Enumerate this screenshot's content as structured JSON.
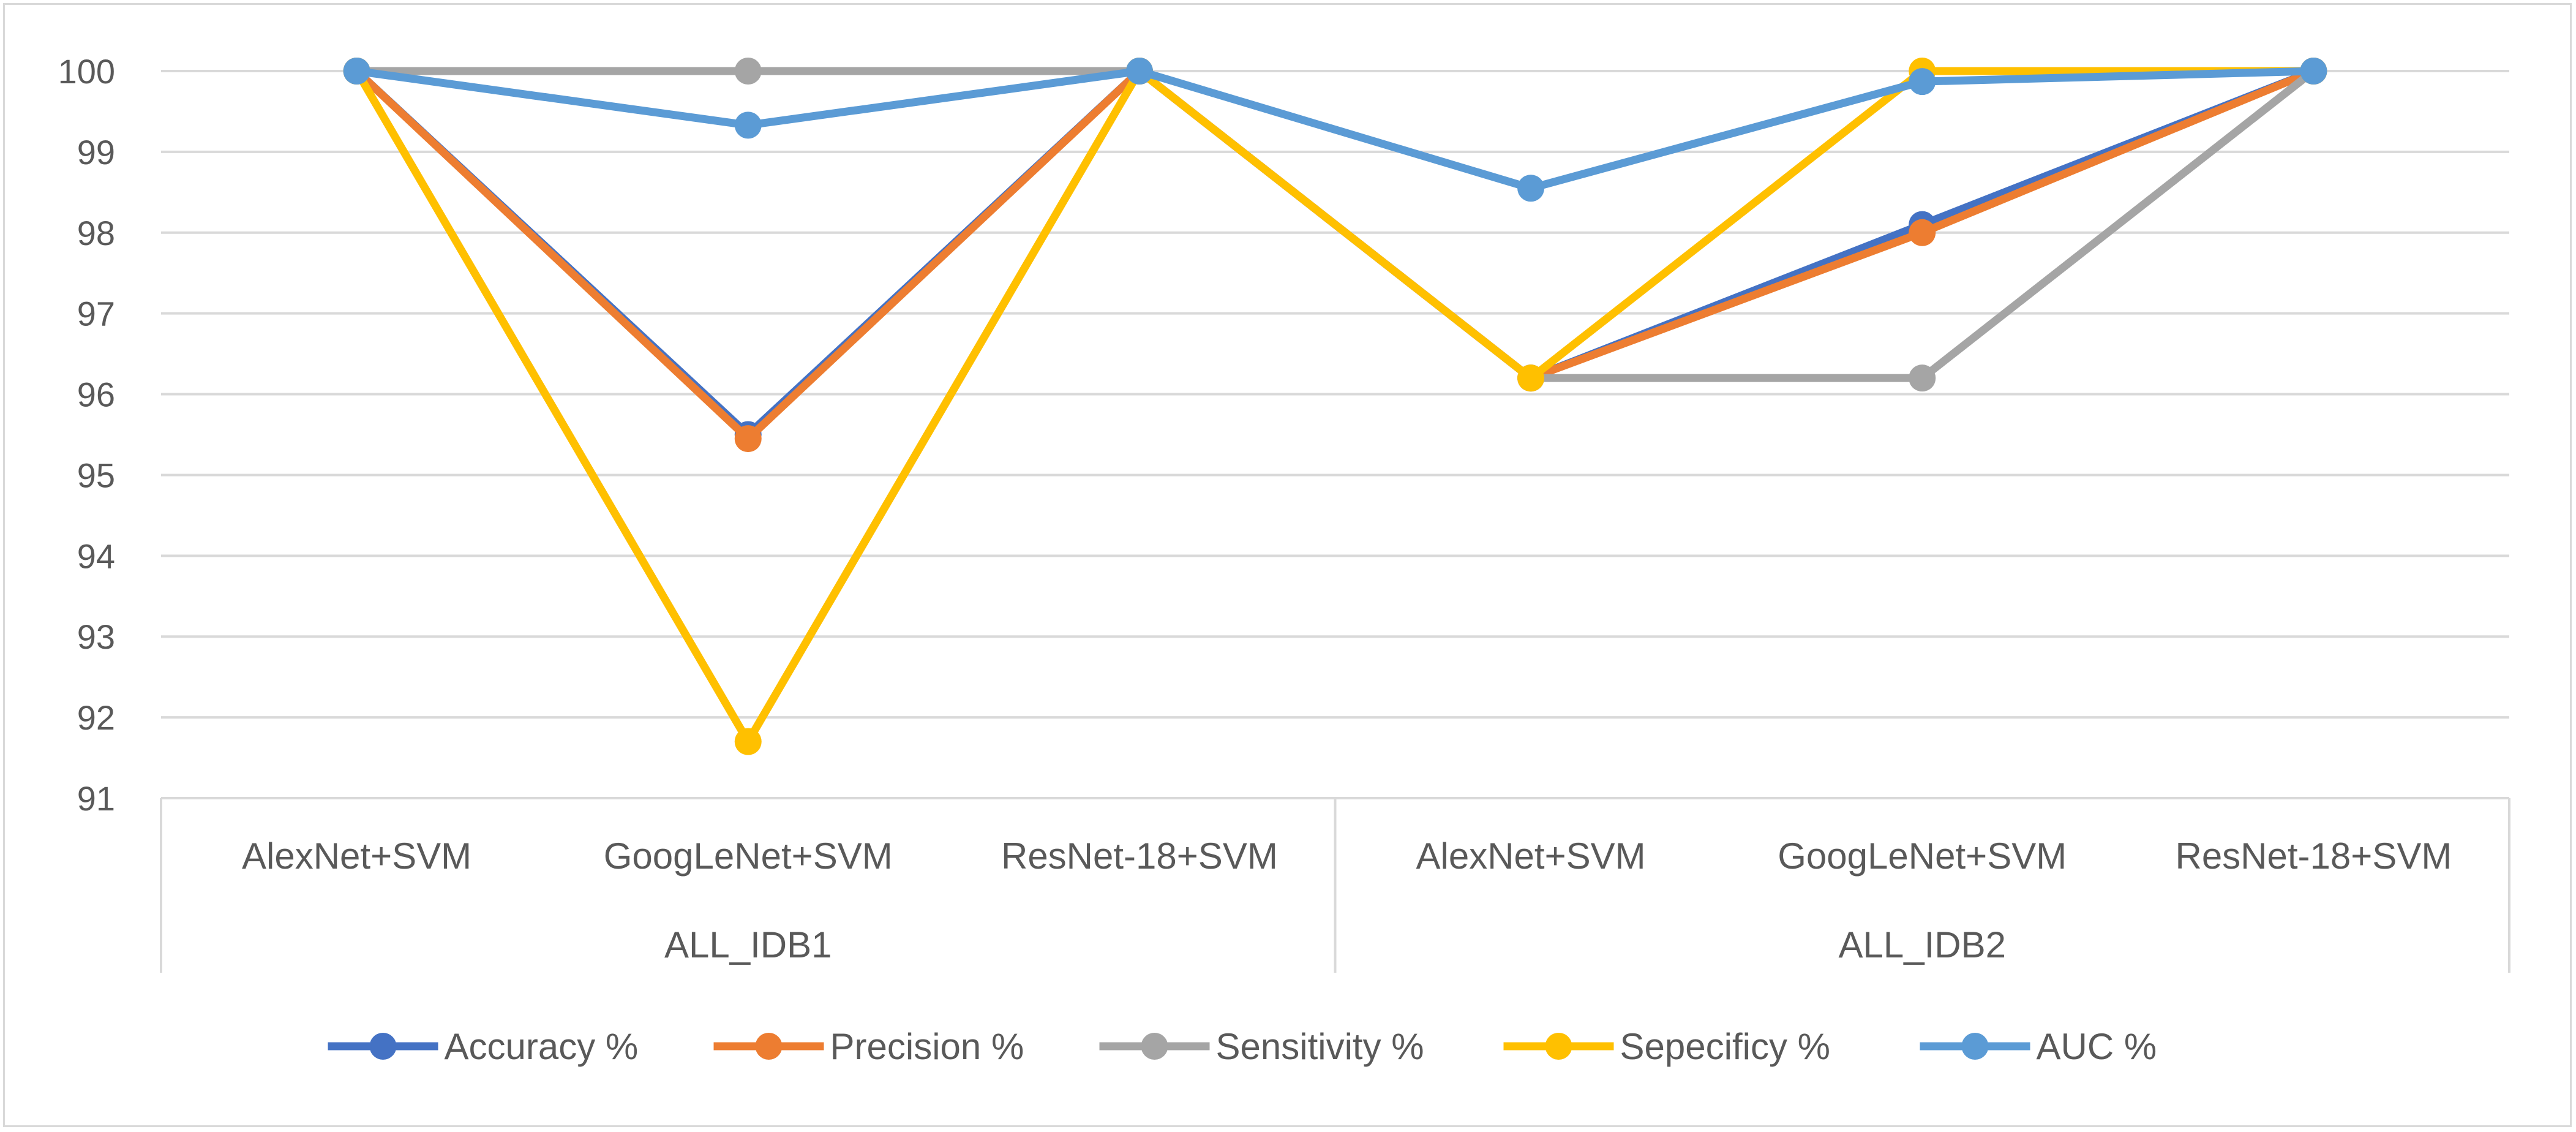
{
  "chart_data": {
    "type": "line",
    "title": "",
    "xlabel": "",
    "ylabel": "",
    "ylim": [
      91,
      100
    ],
    "yticks": [
      "91",
      "92",
      "93",
      "94",
      "95",
      "96",
      "97",
      "98",
      "99",
      "100"
    ],
    "grid": true,
    "legend_position": "bottom",
    "groups": [
      {
        "label": "ALL_IDB1",
        "categories": [
          "AlexNet+SVM",
          "GoogLeNet+SVM",
          "ResNet-18+SVM"
        ]
      },
      {
        "label": "ALL_IDB2",
        "categories": [
          "AlexNet+SVM",
          "GoogLeNet+SVM",
          "ResNet-18+SVM"
        ]
      }
    ],
    "categories": [
      "AlexNet+SVM",
      "GoogLeNet+SVM",
      "ResNet-18+SVM",
      "AlexNet+SVM",
      "GoogLeNet+SVM",
      "ResNet-18+SVM"
    ],
    "series": [
      {
        "name": "Accuracy %",
        "color": "#4472c4",
        "values": [
          100,
          95.5,
          100,
          96.2,
          98.1,
          100
        ]
      },
      {
        "name": "Precision %",
        "color": "#ed7d31",
        "values": [
          100,
          95.45,
          100,
          96.2,
          98.0,
          100
        ]
      },
      {
        "name": "Sensitivity %",
        "color": "#a5a5a5",
        "values": [
          100,
          100,
          100,
          96.2,
          96.2,
          100
        ]
      },
      {
        "name": "Sepecificy %",
        "color": "#ffc000",
        "values": [
          100,
          91.7,
          100,
          96.2,
          100,
          100
        ]
      },
      {
        "name": "AUC %",
        "color": "#5b9bd5",
        "values": [
          100,
          99.33,
          100,
          98.55,
          99.87,
          100
        ]
      }
    ]
  }
}
